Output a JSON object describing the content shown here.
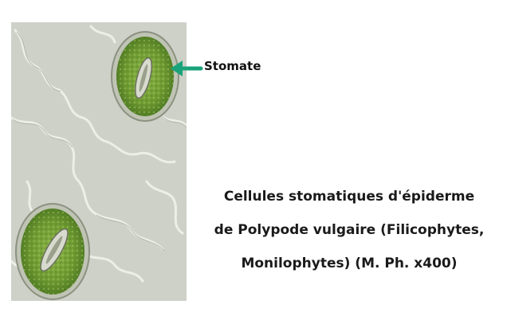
{
  "annotation": {
    "label": "Stomate",
    "arrow_color": "#1aa37a"
  },
  "caption": {
    "line1": "Cellules stomatiques d'épiderme",
    "line2": "de Polypode vulgaire (Filicophytes,",
    "line3": "Monilophytes) (M. Ph. x400)"
  }
}
